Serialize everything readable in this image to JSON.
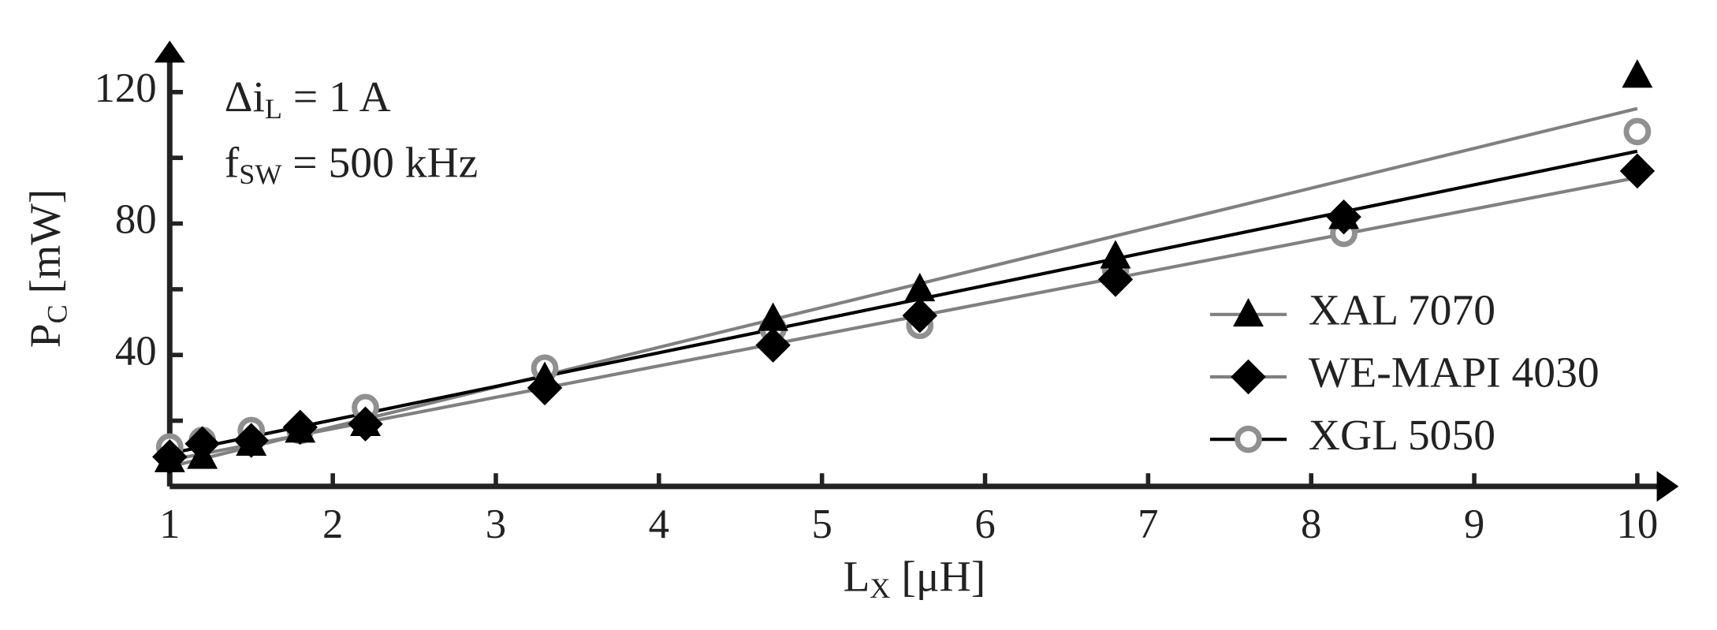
{
  "chart_data": {
    "type": "scatter",
    "annotations": [
      {
        "text": "Δi",
        "sub": "L",
        "rest": " = 1 A"
      },
      {
        "text": "f",
        "sub": "SW",
        "rest": " = 500 kHz"
      }
    ],
    "ylabel": {
      "text": "P",
      "sub": "C",
      "rest": " [mW]"
    },
    "xlabel": {
      "text": "L",
      "sub": "X",
      "rest": " [μH]"
    },
    "x": [
      1,
      1.2,
      1.5,
      1.8,
      2.2,
      3.3,
      4.7,
      5.6,
      6.8,
      8.2,
      10
    ],
    "series": [
      {
        "name": "XAL 7070",
        "marker": "triangle",
        "color": "#000000",
        "line_color": "#808080",
        "values": [
          8,
          9,
          13,
          17,
          19,
          33,
          51,
          60,
          70,
          82,
          125
        ],
        "fit": {
          "x": [
            1,
            10
          ],
          "values": [
            6,
            115
          ]
        }
      },
      {
        "name": "WE-MAPI 4030",
        "marker": "diamond",
        "color": "#000000",
        "line_color": "#808080",
        "values": [
          9,
          13,
          14,
          18,
          19,
          30,
          43,
          52,
          63,
          82,
          96
        ],
        "fit": {
          "x": [
            1,
            10
          ],
          "values": [
            8,
            94
          ]
        }
      },
      {
        "name": "XGL 5050",
        "marker": "circle",
        "color": "#909090",
        "line_color": "#000000",
        "values": [
          12,
          14,
          17,
          17,
          24,
          36,
          48,
          49,
          66,
          77,
          108
        ],
        "fit": {
          "x": [
            1,
            10
          ],
          "values": [
            10,
            102
          ]
        }
      }
    ],
    "xlim": [
      1,
      10.2
    ],
    "ylim": [
      0,
      133
    ],
    "xticks": [
      1,
      2,
      3,
      4,
      5,
      6,
      7,
      8,
      9,
      10
    ],
    "yticks": [
      40,
      80,
      120
    ],
    "minor_yticks": [
      20,
      60,
      100
    ],
    "legend": "right"
  }
}
